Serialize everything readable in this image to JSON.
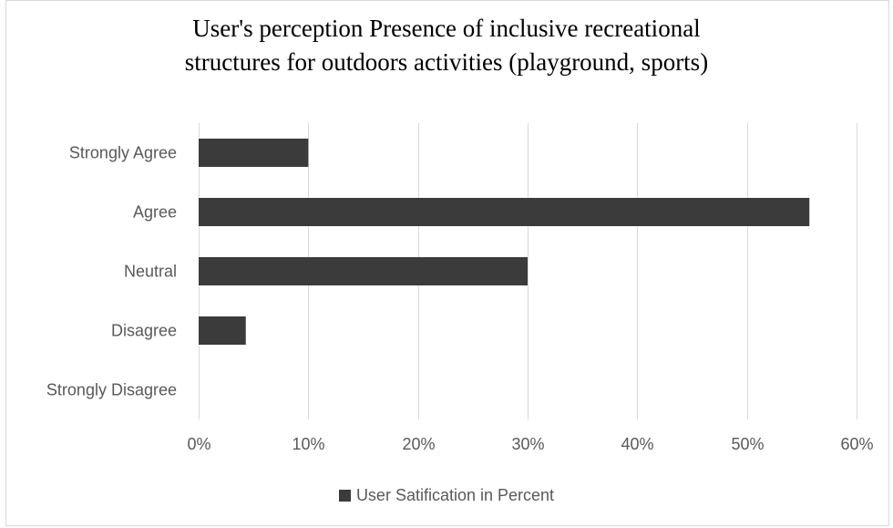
{
  "chart_data": {
    "type": "bar",
    "orientation": "horizontal",
    "title_lines": [
      "User's perception Presence of inclusive recreational",
      "structures for outdoors activities (playground, sports)"
    ],
    "categories": [
      "Strongly Agree",
      "Agree",
      "Neutral",
      "Disagree",
      "Strongly Disagree"
    ],
    "series": [
      {
        "name": "User Satification in Percent",
        "values": [
          10,
          55.7,
          30,
          4.3,
          0
        ]
      }
    ],
    "value_unit": "%",
    "xlim": [
      0,
      60
    ],
    "x_ticks": [
      0,
      10,
      20,
      30,
      40,
      50,
      60
    ],
    "x_tick_labels": [
      "0%",
      "10%",
      "20%",
      "30%",
      "40%",
      "50%",
      "60%"
    ],
    "grid": "vertical",
    "legend_position": "bottom",
    "bar_color": "#3b3b3b",
    "grid_color": "#d9d9d9",
    "text_color": "#595959"
  }
}
